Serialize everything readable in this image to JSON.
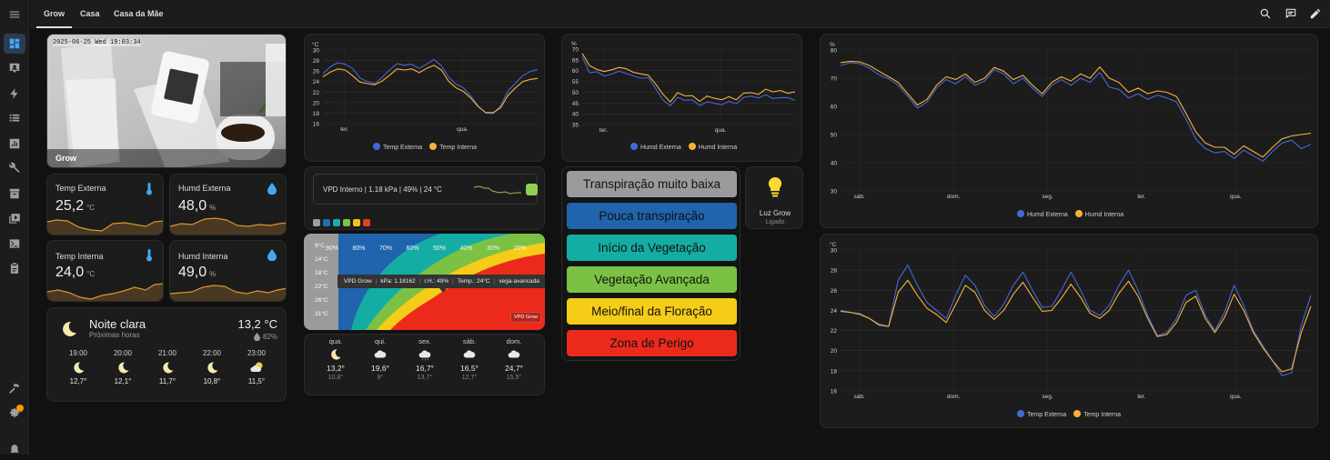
{
  "tabs": [
    "Grow",
    "Casa",
    "Casa da Mãe"
  ],
  "colors": {
    "accent": "#44a8f0",
    "blue": "#4668d4",
    "orange": "#f7b23b",
    "sparkline": "#d8962c"
  },
  "camera": {
    "timestamp": "2025-06-25 Wed 19:03:34",
    "label": "Grow"
  },
  "sensors": [
    {
      "name": "Temp Externa",
      "value": "25,2",
      "unit": "°C",
      "icon": "thermometer-icon"
    },
    {
      "name": "Humd Externa",
      "value": "48,0",
      "unit": "%",
      "icon": "water-drop-icon"
    },
    {
      "name": "Temp Interna",
      "value": "24,0",
      "unit": "°C",
      "icon": "thermometer-icon"
    },
    {
      "name": "Humd Interna",
      "value": "49,0",
      "unit": "%",
      "icon": "water-drop-icon"
    }
  ],
  "weather": {
    "condition": "Noite clara",
    "subtitle": "Próximas horas",
    "temp": "13,2 °C",
    "humidity": "82%",
    "hours": [
      {
        "time": "19:00",
        "temp": "12,7°",
        "icon": "moon-icon"
      },
      {
        "time": "20:00",
        "temp": "12,1°",
        "icon": "moon-icon"
      },
      {
        "time": "21:00",
        "temp": "11,7°",
        "icon": "moon-icon"
      },
      {
        "time": "22:00",
        "temp": "10,8°",
        "icon": "moon-icon"
      },
      {
        "time": "23:00",
        "temp": "11,5°",
        "icon": "partly-cloudy-night-icon"
      }
    ]
  },
  "forecast": [
    {
      "day": "qua.",
      "high": "13,2°",
      "low": "10,8°",
      "icon": "moon-icon"
    },
    {
      "day": "qui.",
      "high": "19,6°",
      "low": "9°",
      "icon": "cloud-icon"
    },
    {
      "day": "sex.",
      "high": "16,7°",
      "low": "13,7°",
      "icon": "rain-cloud-icon"
    },
    {
      "day": "sáb.",
      "high": "16,5°",
      "low": "12,7°",
      "icon": "cloud-icon"
    },
    {
      "day": "dom.",
      "high": "24,7°",
      "low": "15,5°",
      "icon": "cloud-icon"
    }
  ],
  "vpd": {
    "summary": "VPD Interno | 1.18 kPa | 49% | 24 °C",
    "swatches": [
      "#9e9e9e",
      "#1e6fb5",
      "#1aada0",
      "#7fc241",
      "#f0c419",
      "#e0402a"
    ],
    "rh_labels": [
      "90%",
      "80%",
      "70%",
      "60%",
      "50%",
      "40%",
      "30%",
      "20%"
    ],
    "temp_labels": [
      "9°C",
      "14°C",
      "18°C",
      "22°C",
      "26°C",
      "31°C"
    ],
    "tooltip": [
      "VPD Grow",
      "kPa: 1.18162",
      "r.H.: 49%",
      "Temp.: 24°C",
      "vega-avancada"
    ],
    "badge": "VPD Grow"
  },
  "stages": [
    {
      "label": "Transpiração muito baixa",
      "color": "#9b9b9b"
    },
    {
      "label": "Pouca transpiração",
      "color": "#1f64ad"
    },
    {
      "label": "Início da Vegetação",
      "color": "#14ada3"
    },
    {
      "label": "Vegetação Avançada",
      "color": "#7bc144"
    },
    {
      "label": "Meio/final da Floração",
      "color": "#f5cc17"
    },
    {
      "label": "Zona de Perigo",
      "color": "#ec2a1c"
    }
  ],
  "light": {
    "name": "Luz Grow",
    "state": "Ligado",
    "icon": "lightbulb-icon"
  },
  "chart_data": [
    {
      "type": "line",
      "title": "",
      "ylabel": "°C",
      "ylim": [
        16,
        30
      ],
      "yticks": [
        16,
        18,
        20,
        22,
        24,
        26,
        28,
        30
      ],
      "xticks": [
        "ter.",
        "qua."
      ],
      "series": [
        {
          "name": "Temp Externa",
          "values": [
            25.5,
            26.8,
            27.6,
            27.3,
            26.5,
            24.7,
            24.0,
            23.6,
            24.8,
            26.2,
            27.4,
            27.1,
            27.3,
            26.5,
            27.3,
            28.2,
            27.0,
            24.8,
            23.5,
            22.8,
            21.2,
            19.3,
            18.0,
            17.9,
            19.4,
            22.2,
            23.7,
            25.1,
            25.9,
            26.3
          ]
        },
        {
          "name": "Temp Interna",
          "values": [
            24.9,
            25.8,
            26.4,
            26.2,
            25.1,
            23.9,
            23.6,
            23.4,
            24.1,
            25.2,
            26.4,
            26.2,
            26.4,
            25.7,
            26.5,
            27.1,
            26.2,
            24.0,
            22.8,
            22.1,
            20.8,
            19.2,
            18.1,
            18.1,
            19.0,
            21.4,
            22.8,
            24.0,
            24.4,
            24.6
          ]
        }
      ]
    },
    {
      "type": "line",
      "title": "",
      "ylabel": "%",
      "ylim": [
        35,
        70
      ],
      "yticks": [
        35,
        40,
        45,
        50,
        55,
        60,
        65,
        70
      ],
      "xticks": [
        "ter.",
        "qua."
      ],
      "series": [
        {
          "name": "Humd Externa",
          "values": [
            66.5,
            59.0,
            59.5,
            57.5,
            58.4,
            59.7,
            58.8,
            57.5,
            56.5,
            56.7,
            51.7,
            46.4,
            43.7,
            47.6,
            46.2,
            46.5,
            43.8,
            45.5,
            44.9,
            44.1,
            45.8,
            44.6,
            47.6,
            48.2,
            47.3,
            48.8,
            47.0,
            47.5,
            47.5,
            46.2
          ]
        },
        {
          "name": "Humd Interna",
          "values": [
            68.0,
            62.3,
            60.6,
            59.6,
            60.4,
            61.5,
            60.9,
            59.2,
            58.5,
            57.9,
            53.8,
            49.0,
            45.5,
            49.8,
            48.3,
            48.4,
            45.8,
            48.2,
            47.2,
            46.5,
            47.9,
            46.5,
            49.6,
            49.8,
            49.0,
            51.4,
            50.2,
            50.8,
            49.5,
            50.2
          ]
        }
      ]
    },
    {
      "type": "line",
      "title": "",
      "ylabel": "%",
      "ylim": [
        30,
        80
      ],
      "yticks": [
        30,
        40,
        50,
        60,
        70,
        80
      ],
      "xticks": [
        "sáb.",
        "dom.",
        "seg.",
        "ter.",
        "qua."
      ],
      "series": [
        {
          "name": "Humd Externa",
          "values": [
            74.5,
            75.5,
            75.2,
            73.5,
            71.2,
            69.8,
            67.5,
            63.5,
            59.4,
            61.5,
            66.5,
            69.5,
            68.0,
            70.5,
            67.5,
            69.0,
            73.0,
            71.5,
            68.0,
            70.0,
            66.5,
            63.5,
            67.5,
            69.5,
            67.5,
            70.0,
            68.5,
            72.0,
            66.8,
            66.0,
            63.0,
            64.5,
            62.5,
            64.0,
            63.0,
            61.5,
            55.5,
            48.5,
            45.0,
            43.5,
            44.0,
            41.5,
            44.5,
            42.5,
            40.5,
            44.0,
            47.0,
            48.0,
            45.0,
            46.5
          ]
        },
        {
          "name": "Humd Interna",
          "values": [
            75.5,
            76.0,
            75.8,
            74.5,
            72.5,
            70.5,
            68.5,
            64.5,
            60.5,
            62.5,
            67.5,
            70.5,
            69.5,
            71.5,
            68.5,
            70.0,
            73.8,
            72.5,
            69.5,
            71.0,
            67.5,
            64.5,
            68.5,
            70.5,
            69.0,
            71.5,
            70.0,
            74.0,
            70.0,
            68.5,
            65.0,
            66.5,
            64.5,
            65.5,
            65.0,
            63.5,
            57.5,
            51.0,
            47.0,
            45.5,
            45.5,
            43.0,
            46.0,
            44.0,
            42.0,
            45.5,
            48.5,
            49.5,
            50.0,
            50.5
          ]
        }
      ]
    },
    {
      "type": "line",
      "title": "",
      "ylabel": "°C",
      "ylim": [
        16,
        30
      ],
      "yticks": [
        16,
        18,
        20,
        22,
        24,
        26,
        28,
        30
      ],
      "xticks": [
        "sáb.",
        "dom.",
        "seg.",
        "ter.",
        "qua."
      ],
      "series": [
        {
          "name": "Temp Externa",
          "values": [
            24.0,
            23.8,
            23.7,
            23.2,
            22.5,
            22.4,
            27.0,
            28.5,
            26.5,
            24.8,
            24.0,
            23.2,
            25.5,
            27.5,
            26.5,
            24.5,
            23.4,
            24.6,
            26.5,
            27.8,
            26.0,
            24.3,
            24.4,
            26.0,
            27.8,
            26.0,
            24.0,
            23.5,
            24.5,
            26.5,
            28.0,
            26.0,
            23.5,
            21.5,
            21.8,
            23.2,
            25.5,
            26.0,
            23.5,
            22.0,
            23.8,
            26.5,
            24.5,
            22.0,
            20.5,
            19.0,
            17.5,
            17.8,
            22.5,
            25.5
          ]
        },
        {
          "name": "Temp Interna",
          "values": [
            23.9,
            23.8,
            23.6,
            23.2,
            22.6,
            22.4,
            25.8,
            27.0,
            25.5,
            24.2,
            23.6,
            22.8,
            24.6,
            26.5,
            25.8,
            24.0,
            23.1,
            24.0,
            25.6,
            26.8,
            25.3,
            23.9,
            24.0,
            25.2,
            26.6,
            25.3,
            23.7,
            23.2,
            24.0,
            25.7,
            26.9,
            25.4,
            23.2,
            21.4,
            21.6,
            22.8,
            24.8,
            25.4,
            23.2,
            21.8,
            23.3,
            25.6,
            24.0,
            21.8,
            20.3,
            19.0,
            17.9,
            18.2,
            21.8,
            24.4
          ]
        }
      ]
    }
  ]
}
